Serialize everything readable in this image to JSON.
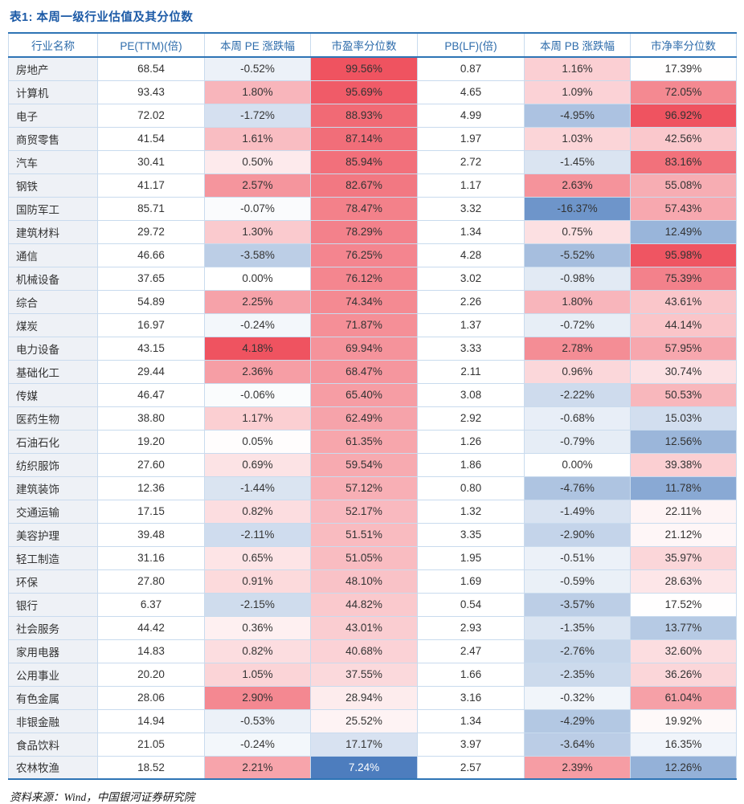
{
  "title": "表1:  本周一级行业估值及其分位数",
  "source": "资料来源：Wind，中国银河证券研究院",
  "colors": {
    "accent_blue": "#2e74b5",
    "header_text_blue": "#2e6cab",
    "title_blue": "#1c5aa6",
    "heat_red_max": "#ef5360",
    "heat_blue_max": "#4a7bbd",
    "industry_col_bg": "#eef1f6",
    "grid_line": "#c9dbee"
  },
  "chart_data": {
    "type": "table",
    "title": "表1:  本周一级行业估值及其分位数",
    "columns": [
      "行业名称",
      "PE(TTM)(倍)",
      "本周 PE 涨跌幅",
      "市盈率分位数",
      "PB(LF)(倍)",
      "本周 PB 涨跌幅",
      "市净率分位数"
    ],
    "heatmap_note": "change and percentile columns shaded red (high/positive) to blue (low/negative)",
    "rows": [
      {
        "industry": "房地产",
        "pe": "68.54",
        "pe_chg": "-0.52%",
        "pe_pct": "99.56%",
        "pb": "0.87",
        "pb_chg": "1.16%",
        "pb_pct": "17.39%"
      },
      {
        "industry": "计算机",
        "pe": "93.43",
        "pe_chg": "1.80%",
        "pe_pct": "95.69%",
        "pb": "4.65",
        "pb_chg": "1.09%",
        "pb_pct": "72.05%"
      },
      {
        "industry": "电子",
        "pe": "72.02",
        "pe_chg": "-1.72%",
        "pe_pct": "88.93%",
        "pb": "4.99",
        "pb_chg": "-4.95%",
        "pb_pct": "96.92%"
      },
      {
        "industry": "商贸零售",
        "pe": "41.54",
        "pe_chg": "1.61%",
        "pe_pct": "87.14%",
        "pb": "1.97",
        "pb_chg": "1.03%",
        "pb_pct": "42.56%"
      },
      {
        "industry": "汽车",
        "pe": "30.41",
        "pe_chg": "0.50%",
        "pe_pct": "85.94%",
        "pb": "2.72",
        "pb_chg": "-1.45%",
        "pb_pct": "83.16%"
      },
      {
        "industry": "钢铁",
        "pe": "41.17",
        "pe_chg": "2.57%",
        "pe_pct": "82.67%",
        "pb": "1.17",
        "pb_chg": "2.63%",
        "pb_pct": "55.08%"
      },
      {
        "industry": "国防军工",
        "pe": "85.71",
        "pe_chg": "-0.07%",
        "pe_pct": "78.47%",
        "pb": "3.32",
        "pb_chg": "-16.37%",
        "pb_pct": "57.43%"
      },
      {
        "industry": "建筑材料",
        "pe": "29.72",
        "pe_chg": "1.30%",
        "pe_pct": "78.29%",
        "pb": "1.34",
        "pb_chg": "0.75%",
        "pb_pct": "12.49%"
      },
      {
        "industry": "通信",
        "pe": "46.66",
        "pe_chg": "-3.58%",
        "pe_pct": "76.25%",
        "pb": "4.28",
        "pb_chg": "-5.52%",
        "pb_pct": "95.98%"
      },
      {
        "industry": "机械设备",
        "pe": "37.65",
        "pe_chg": "0.00%",
        "pe_pct": "76.12%",
        "pb": "3.02",
        "pb_chg": "-0.98%",
        "pb_pct": "75.39%"
      },
      {
        "industry": "综合",
        "pe": "54.89",
        "pe_chg": "2.25%",
        "pe_pct": "74.34%",
        "pb": "2.26",
        "pb_chg": "1.80%",
        "pb_pct": "43.61%"
      },
      {
        "industry": "煤炭",
        "pe": "16.97",
        "pe_chg": "-0.24%",
        "pe_pct": "71.87%",
        "pb": "1.37",
        "pb_chg": "-0.72%",
        "pb_pct": "44.14%"
      },
      {
        "industry": "电力设备",
        "pe": "43.15",
        "pe_chg": "4.18%",
        "pe_pct": "69.94%",
        "pb": "3.33",
        "pb_chg": "2.78%",
        "pb_pct": "57.95%"
      },
      {
        "industry": "基础化工",
        "pe": "29.44",
        "pe_chg": "2.36%",
        "pe_pct": "68.47%",
        "pb": "2.11",
        "pb_chg": "0.96%",
        "pb_pct": "30.74%"
      },
      {
        "industry": "传媒",
        "pe": "46.47",
        "pe_chg": "-0.06%",
        "pe_pct": "65.40%",
        "pb": "3.08",
        "pb_chg": "-2.22%",
        "pb_pct": "50.53%"
      },
      {
        "industry": "医药生物",
        "pe": "38.80",
        "pe_chg": "1.17%",
        "pe_pct": "62.49%",
        "pb": "2.92",
        "pb_chg": "-0.68%",
        "pb_pct": "15.03%"
      },
      {
        "industry": "石油石化",
        "pe": "19.20",
        "pe_chg": "0.05%",
        "pe_pct": "61.35%",
        "pb": "1.26",
        "pb_chg": "-0.79%",
        "pb_pct": "12.56%"
      },
      {
        "industry": "纺织服饰",
        "pe": "27.60",
        "pe_chg": "0.69%",
        "pe_pct": "59.54%",
        "pb": "1.86",
        "pb_chg": "0.00%",
        "pb_pct": "39.38%"
      },
      {
        "industry": "建筑装饰",
        "pe": "12.36",
        "pe_chg": "-1.44%",
        "pe_pct": "57.12%",
        "pb": "0.80",
        "pb_chg": "-4.76%",
        "pb_pct": "11.78%"
      },
      {
        "industry": "交通运输",
        "pe": "17.15",
        "pe_chg": "0.82%",
        "pe_pct": "52.17%",
        "pb": "1.32",
        "pb_chg": "-1.49%",
        "pb_pct": "22.11%"
      },
      {
        "industry": "美容护理",
        "pe": "39.48",
        "pe_chg": "-2.11%",
        "pe_pct": "51.51%",
        "pb": "3.35",
        "pb_chg": "-2.90%",
        "pb_pct": "21.12%"
      },
      {
        "industry": "轻工制造",
        "pe": "31.16",
        "pe_chg": "0.65%",
        "pe_pct": "51.05%",
        "pb": "1.95",
        "pb_chg": "-0.51%",
        "pb_pct": "35.97%"
      },
      {
        "industry": "环保",
        "pe": "27.80",
        "pe_chg": "0.91%",
        "pe_pct": "48.10%",
        "pb": "1.69",
        "pb_chg": "-0.59%",
        "pb_pct": "28.63%"
      },
      {
        "industry": "银行",
        "pe": "6.37",
        "pe_chg": "-2.15%",
        "pe_pct": "44.82%",
        "pb": "0.54",
        "pb_chg": "-3.57%",
        "pb_pct": "17.52%"
      },
      {
        "industry": "社会服务",
        "pe": "44.42",
        "pe_chg": "0.36%",
        "pe_pct": "43.01%",
        "pb": "2.93",
        "pb_chg": "-1.35%",
        "pb_pct": "13.77%"
      },
      {
        "industry": "家用电器",
        "pe": "14.83",
        "pe_chg": "0.82%",
        "pe_pct": "40.68%",
        "pb": "2.47",
        "pb_chg": "-2.76%",
        "pb_pct": "32.60%"
      },
      {
        "industry": "公用事业",
        "pe": "20.20",
        "pe_chg": "1.05%",
        "pe_pct": "37.55%",
        "pb": "1.66",
        "pb_chg": "-2.35%",
        "pb_pct": "36.26%"
      },
      {
        "industry": "有色金属",
        "pe": "28.06",
        "pe_chg": "2.90%",
        "pe_pct": "28.94%",
        "pb": "3.16",
        "pb_chg": "-0.32%",
        "pb_pct": "61.04%"
      },
      {
        "industry": "非银金融",
        "pe": "14.94",
        "pe_chg": "-0.53%",
        "pe_pct": "25.52%",
        "pb": "1.34",
        "pb_chg": "-4.29%",
        "pb_pct": "19.92%"
      },
      {
        "industry": "食品饮料",
        "pe": "21.05",
        "pe_chg": "-0.24%",
        "pe_pct": "17.17%",
        "pb": "3.97",
        "pb_chg": "-3.64%",
        "pb_pct": "16.35%"
      },
      {
        "industry": "农林牧渔",
        "pe": "18.52",
        "pe_chg": "2.21%",
        "pe_pct": "7.24%",
        "pb": "2.57",
        "pb_chg": "2.39%",
        "pb_pct": "12.26%"
      }
    ]
  }
}
